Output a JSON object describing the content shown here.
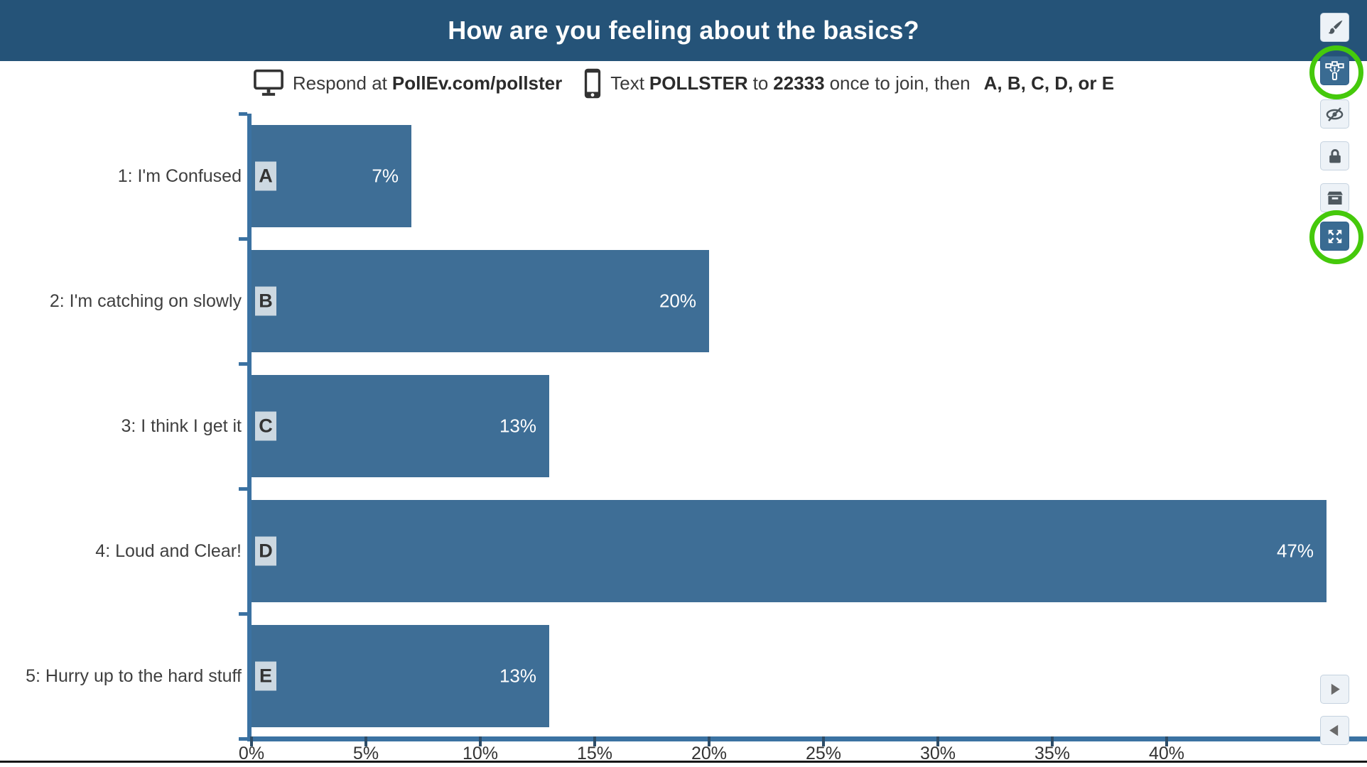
{
  "header": {
    "title": "How are you feeling about the basics?",
    "background_color": "#255378"
  },
  "instructions": {
    "respond_label": "Respond at",
    "respond_target": "PollEv.com/pollster",
    "text_label": "Text",
    "keyword": "POLLSTER",
    "to_label": "to",
    "shortcode": "22333",
    "join_label": "once to join, then",
    "options_label": "A, B, C, D, or E",
    "icons": [
      "monitor-icon",
      "phone-icon"
    ]
  },
  "chart_data": {
    "type": "bar",
    "orientation": "horizontal",
    "title": "How are you feeling about the basics?",
    "categories": [
      "1: I'm Confused",
      "2: I'm catching on slowly",
      "3: I think I get it",
      "4: Loud and Clear!",
      "5: Hurry up to the hard stuff"
    ],
    "letters": [
      "A",
      "B",
      "C",
      "D",
      "E"
    ],
    "values": [
      7,
      20,
      13,
      47,
      13
    ],
    "value_labels": [
      "7%",
      "20%",
      "13%",
      "47%",
      "13%"
    ],
    "x_tick_values": [
      0,
      5,
      10,
      15,
      20,
      25,
      30,
      35,
      40
    ],
    "x_ticks": [
      "0%",
      "5%",
      "10%",
      "15%",
      "20%",
      "25%",
      "30%",
      "35%",
      "40%"
    ],
    "xlabel": "",
    "ylabel": "",
    "x_range": [
      0,
      48.6
    ],
    "grid": false,
    "legend": "none",
    "bar_color": "#3e6e96",
    "axis_color": "#3b72a2",
    "badge_bg_color": "#ccd8e1"
  },
  "toolbar": {
    "buttons": [
      {
        "name": "edit",
        "icon": "paintbrush-icon",
        "active": false,
        "circled": false
      },
      {
        "name": "present-on-devices",
        "icon": "broadcast-icon",
        "active": true,
        "circled": true
      },
      {
        "name": "hide-results",
        "icon": "eye-off-icon",
        "active": false,
        "circled": false
      },
      {
        "name": "lock-responses",
        "icon": "lock-icon",
        "active": false,
        "circled": false
      },
      {
        "name": "archive",
        "icon": "archive-icon",
        "active": false,
        "circled": false
      },
      {
        "name": "fullscreen",
        "icon": "fullscreen-icon",
        "active": true,
        "circled": true
      }
    ],
    "nav_buttons": [
      {
        "name": "next-slide",
        "icon": "play-forward-icon"
      },
      {
        "name": "previous-slide",
        "icon": "play-back-icon"
      }
    ]
  },
  "annotations": {
    "ring_color": "#45c90b",
    "ring_count": 2
  }
}
